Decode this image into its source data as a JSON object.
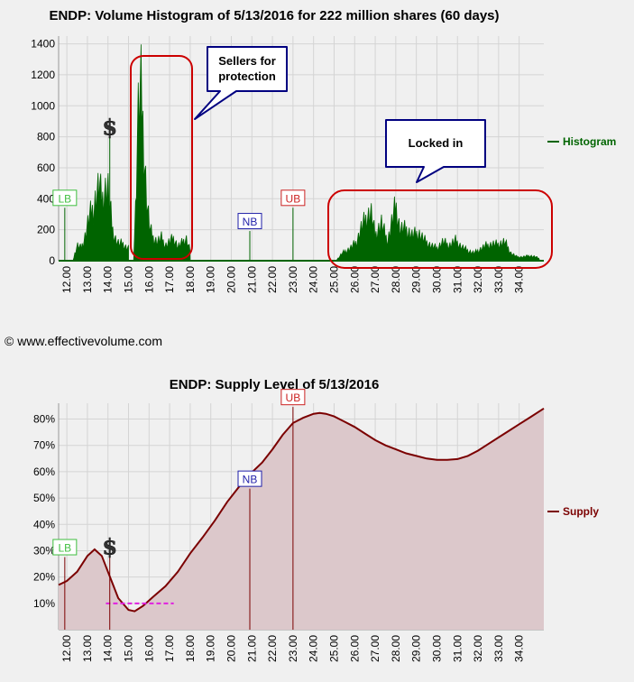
{
  "copyright": "© www.effectivevolume.com",
  "colors": {
    "histogram": "#006400",
    "supply_line": "#7b0000",
    "supply_fill": "#dcc8cb",
    "grid": "#d4d4d4",
    "lb": "#3fbf3f",
    "nb": "#1f1fa8",
    "ub": "#cc2222",
    "callout_border": "#cc0000",
    "box_border": "#000080",
    "support_line": "#e020e0"
  },
  "chart_data": [
    {
      "type": "area",
      "title": "ENDP: Volume Histogram of 5/13/2016 for 222 million shares (60 days)",
      "legend": "Histogram",
      "legend_position": "right",
      "grid": true,
      "xlim": [
        11.6,
        35.2
      ],
      "ylim": [
        0,
        1450
      ],
      "yticks": [
        0,
        200,
        400,
        600,
        800,
        1000,
        1200,
        1400
      ],
      "xticks": [
        "12.00",
        "13.00",
        "14.00",
        "15.00",
        "16.00",
        "17.00",
        "18.00",
        "19.00",
        "20.00",
        "21.00",
        "22.00",
        "23.00",
        "24.00",
        "25.00",
        "26.00",
        "27.00",
        "28.00",
        "29.00",
        "30.00",
        "31.00",
        "32.00",
        "33.00",
        "34.00"
      ],
      "markers": [
        {
          "label": "LB",
          "x": 11.9,
          "value": 400,
          "color_key": "lb"
        },
        {
          "label": "$",
          "x": 14.0,
          "value": 800,
          "color_key": "dollar"
        },
        {
          "label": "NB",
          "x": 20.9,
          "value": 250,
          "color_key": "nb"
        },
        {
          "label": "UB",
          "x": 23.0,
          "value": 400,
          "color_key": "ub"
        }
      ],
      "annotations": [
        "Sellers for protection",
        "Locked in"
      ],
      "segments": [
        {
          "x": [
            12.3,
            12.5,
            12.7,
            12.9,
            13.0,
            13.1,
            13.3,
            13.5,
            13.6,
            13.7,
            13.85,
            14.0,
            14.1,
            14.25,
            14.4,
            14.55,
            14.7,
            14.85,
            15.0
          ],
          "y": [
            0,
            120,
            100,
            200,
            280,
            350,
            420,
            560,
            600,
            470,
            560,
            580,
            430,
            220,
            160,
            130,
            140,
            110,
            100
          ]
        },
        {
          "x": [
            15.25,
            15.35,
            15.45,
            15.55,
            15.6,
            15.65,
            15.75,
            15.9,
            16.05,
            16.2,
            16.4,
            16.6,
            16.8,
            17.0,
            17.2,
            17.4,
            17.6,
            17.8,
            18.0
          ],
          "y": [
            0,
            450,
            1100,
            1300,
            1350,
            1250,
            900,
            450,
            250,
            180,
            150,
            180,
            120,
            150,
            180,
            110,
            140,
            180,
            80
          ]
        },
        {
          "x": [
            25.1,
            25.4,
            25.8,
            26.1,
            26.3,
            26.6,
            26.8,
            27.0,
            27.3,
            27.6,
            27.8,
            28.0,
            28.2,
            28.5,
            28.8,
            29.1,
            29.4,
            29.7,
            30.0,
            30.3,
            30.6,
            30.9,
            31.2,
            31.5,
            31.8,
            32.1,
            32.4,
            32.7,
            33.0,
            33.3,
            33.6,
            33.9,
            34.2,
            34.5,
            34.8,
            35.0
          ],
          "y": [
            0,
            60,
            100,
            150,
            250,
            350,
            380,
            200,
            300,
            150,
            300,
            440,
            250,
            250,
            200,
            220,
            160,
            120,
            100,
            150,
            120,
            160,
            110,
            80,
            60,
            90,
            120,
            130,
            130,
            150,
            60,
            30,
            30,
            40,
            30,
            15
          ]
        }
      ]
    },
    {
      "type": "area",
      "title": "ENDP: Supply Level of 5/13/2016",
      "legend": "Supply",
      "legend_position": "right",
      "grid": true,
      "xlim": [
        11.6,
        35.2
      ],
      "ylim": [
        0,
        0.86
      ],
      "yticks": [
        "10%",
        "20%",
        "30%",
        "40%",
        "50%",
        "60%",
        "70%",
        "80%"
      ],
      "xticks": [
        "12.00",
        "13.00",
        "14.00",
        "15.00",
        "16.00",
        "17.00",
        "18.00",
        "19.00",
        "20.00",
        "21.00",
        "22.00",
        "23.00",
        "24.00",
        "25.00",
        "26.00",
        "27.00",
        "28.00",
        "29.00",
        "30.00",
        "31.00",
        "32.00",
        "33.00",
        "34.00"
      ],
      "support_line": {
        "x": [
          13.9,
          17.2
        ],
        "y": 0.1
      },
      "markers": [
        {
          "label": "LB",
          "x": 11.9,
          "value": 0.31,
          "color_key": "lb"
        },
        {
          "label": "$",
          "x": 14.0,
          "value": 0.28,
          "color_key": "dollar"
        },
        {
          "label": "NB",
          "x": 20.9,
          "value": 0.57,
          "color_key": "nb"
        },
        {
          "label": "UB",
          "x": 23.0,
          "value": 0.88,
          "color_key": "ub"
        }
      ],
      "series": [
        {
          "name": "Supply",
          "x": [
            11.6,
            12.0,
            12.5,
            13.0,
            13.35,
            13.7,
            14.0,
            14.5,
            15.0,
            15.3,
            15.7,
            16.2,
            16.8,
            17.4,
            18.0,
            18.6,
            19.2,
            19.8,
            20.4,
            20.9,
            21.5,
            22.0,
            22.5,
            23.0,
            23.5,
            24.0,
            24.3,
            24.6,
            25.0,
            25.5,
            26.0,
            26.5,
            27.0,
            27.5,
            28.0,
            28.5,
            29.0,
            29.5,
            30.0,
            30.5,
            31.0,
            31.5,
            32.0,
            32.5,
            33.0,
            33.5,
            34.0,
            34.5,
            35.2
          ],
          "y": [
            0.17,
            0.185,
            0.22,
            0.28,
            0.305,
            0.28,
            0.22,
            0.12,
            0.075,
            0.07,
            0.09,
            0.125,
            0.165,
            0.22,
            0.29,
            0.35,
            0.415,
            0.485,
            0.545,
            0.59,
            0.635,
            0.685,
            0.74,
            0.785,
            0.805,
            0.82,
            0.823,
            0.82,
            0.81,
            0.79,
            0.77,
            0.745,
            0.72,
            0.7,
            0.685,
            0.67,
            0.66,
            0.65,
            0.645,
            0.645,
            0.648,
            0.66,
            0.68,
            0.705,
            0.73,
            0.755,
            0.78,
            0.805,
            0.84
          ]
        }
      ]
    }
  ]
}
